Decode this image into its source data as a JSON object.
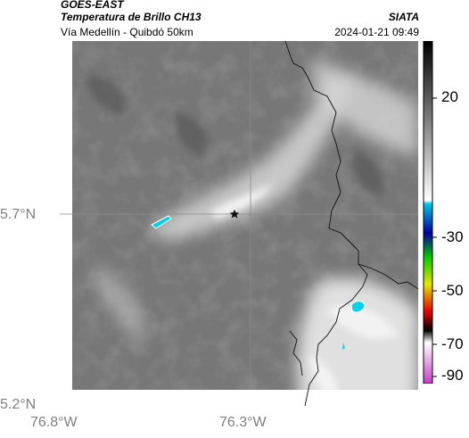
{
  "header": {
    "satellite": "GOES-EAST",
    "product": "Temperatura de Brillo CH13",
    "organization": "SIATA",
    "route": "Vía Medellín - Quibdó 50km",
    "timestamp": "2024-01-21 09:49"
  },
  "axes": {
    "lat_labels": [
      "5.7°N",
      "5.2°N"
    ],
    "lon_labels": [
      "76.8°W",
      "76.3°W"
    ]
  },
  "colorbar": {
    "labels": [
      "20",
      "-30",
      "-50",
      "-70",
      "-90"
    ],
    "colors": [
      "#000000",
      "#ffffff",
      "#00c8e6",
      "#0000a0",
      "#00c800",
      "#e6e600",
      "#e60000",
      "#000000",
      "#c83cc8"
    ]
  },
  "map": {
    "marker": "star-icon",
    "grid_lines": true,
    "background_gray": "#7a7a7a",
    "cold_cloud_color": "#00d2e8"
  }
}
